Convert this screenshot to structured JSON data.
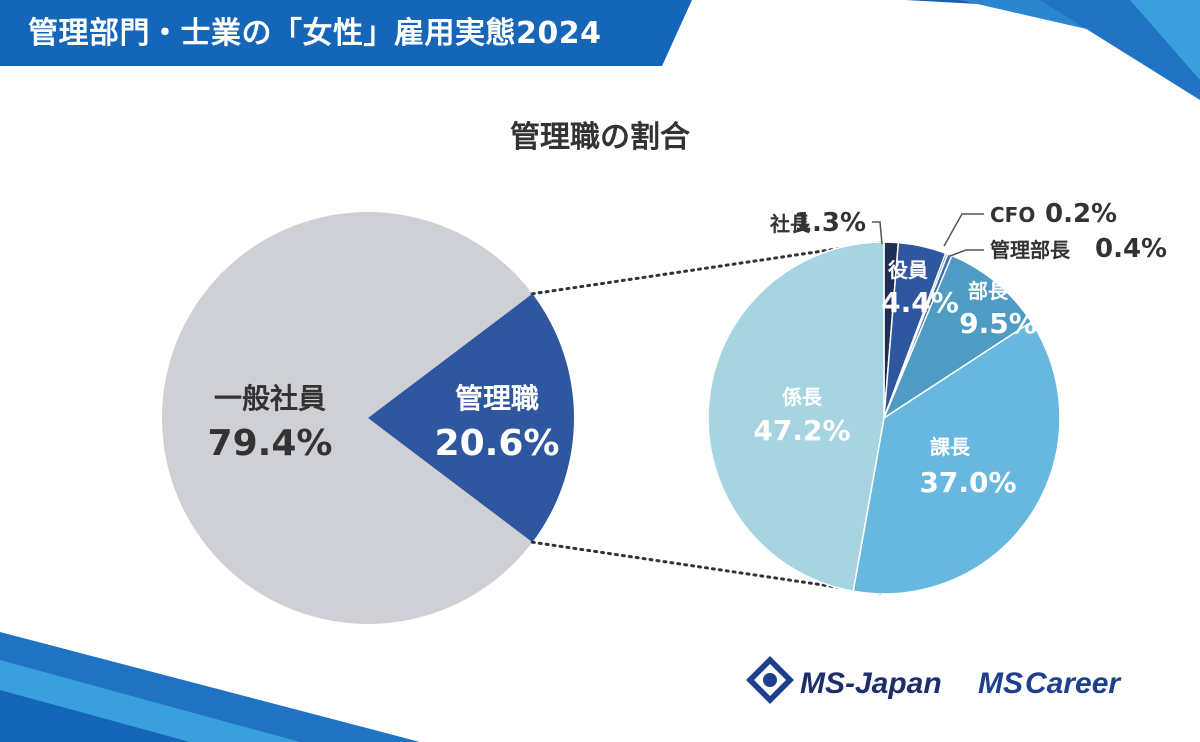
{
  "header": {
    "title": "管理部門・士業の「女性」雇用実態2024"
  },
  "chart_data": [
    {
      "type": "pie",
      "title": "管理職の割合",
      "slices": [
        {
          "label": "管理職",
          "value": 20.6,
          "display": "20.6%",
          "color": "#2F579F"
        },
        {
          "label": "一般社員",
          "value": 79.4,
          "display": "79.4%",
          "color": "#CFD0D5"
        }
      ]
    },
    {
      "type": "pie",
      "title": "",
      "slices": [
        {
          "label": "社長",
          "value": 1.3,
          "display": "1.3%",
          "color": "#1E2E55"
        },
        {
          "label": "役員",
          "value": 4.4,
          "display": "4.4%",
          "color": "#2F579F"
        },
        {
          "label": "CFO",
          "value": 0.2,
          "display": "0.2%",
          "color": "#4A78BC"
        },
        {
          "label": "管理部長",
          "value": 0.4,
          "display": "0.4%",
          "color": "#3A6DB0"
        },
        {
          "label": "部長",
          "value": 9.5,
          "display": "9.5%",
          "color": "#4E9BC4"
        },
        {
          "label": "課長",
          "value": 37.0,
          "display": "37.0%",
          "color": "#67B7DF"
        },
        {
          "label": "係長",
          "value": 47.2,
          "display": "47.2%",
          "color": "#A7D4E1"
        }
      ]
    }
  ],
  "logos": {
    "ms_japan": "MS-Japan",
    "ms": "MS",
    "career": "Career"
  }
}
